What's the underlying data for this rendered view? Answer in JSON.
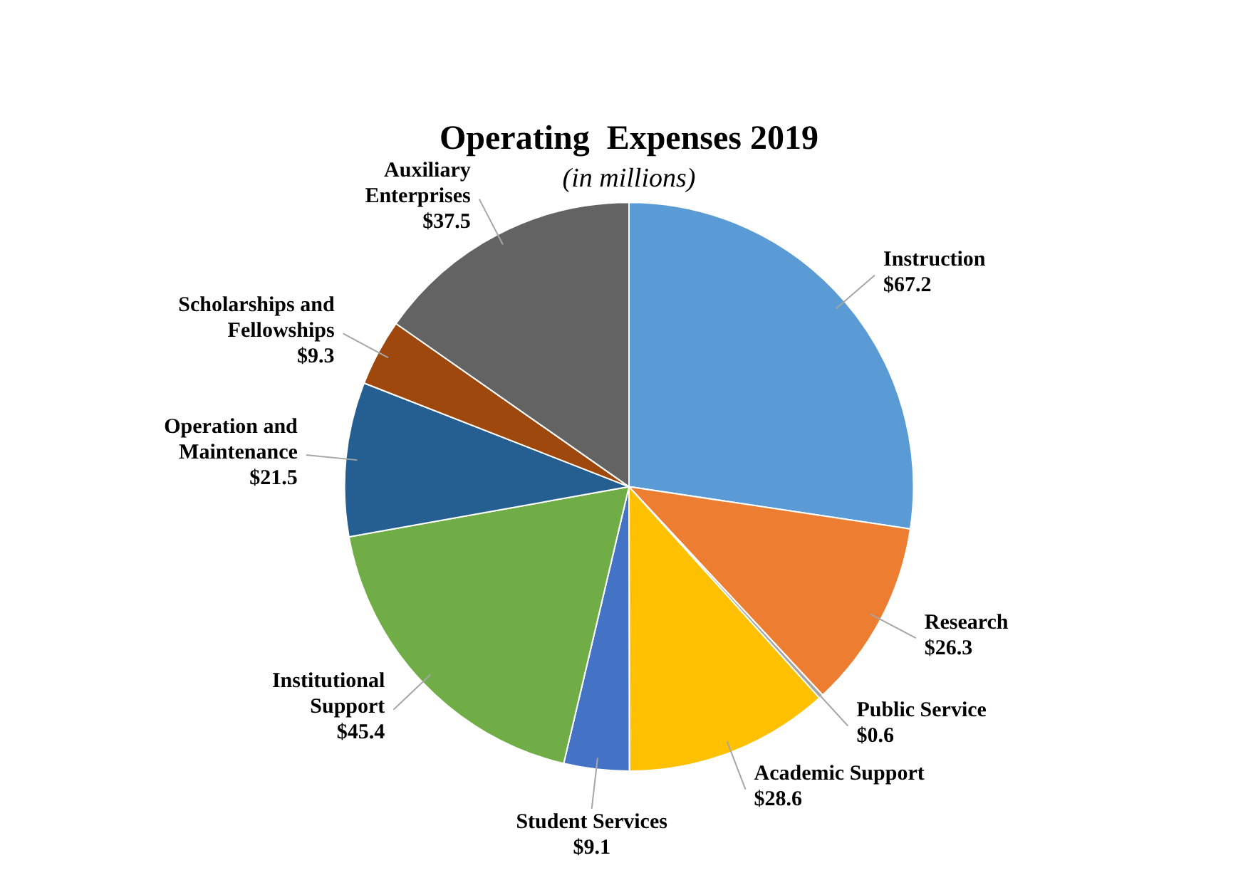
{
  "chart_data": {
    "type": "pie",
    "title": "Operating  Expenses 2019",
    "subtitle": "(in millions)",
    "categories": [
      "Instruction",
      "Research",
      "Public Service",
      "Academic Support",
      "Student Services",
      "Institutional Support",
      "Operation and Maintenance",
      "Scholarships and Fellowships",
      "Auxiliary Enterprises"
    ],
    "values": [
      67.2,
      26.3,
      0.6,
      28.6,
      9.1,
      45.4,
      21.5,
      9.3,
      37.5
    ],
    "value_labels": [
      "$67.2",
      "$26.3",
      "$0.6",
      "$28.6",
      "$9.1",
      "$45.4",
      "$21.5",
      "$9.3",
      "$37.5"
    ],
    "colors": [
      "#5b9bd5",
      "#ed7d31",
      "#a5a5a5",
      "#ffc000",
      "#4472c4",
      "#70ad47",
      "#255e91",
      "#9e480e",
      "#636363"
    ],
    "legend": false
  }
}
